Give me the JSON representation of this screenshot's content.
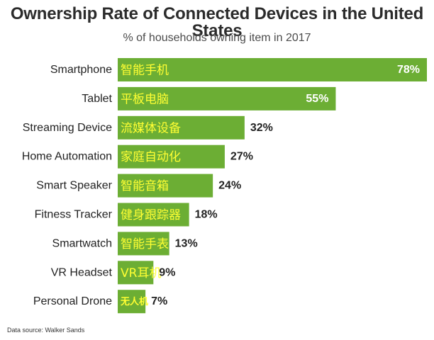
{
  "title": "Ownership Rate of Connected Devices in the United States",
  "subtitle": "% of households owning item in 2017",
  "source": "Data source: Walker Sands",
  "colors": {
    "bar": "#6cae34",
    "inside_label": "#ffff33",
    "inside_value": "#ffffff",
    "text": "#222222"
  },
  "chart_data": {
    "type": "bar",
    "orientation": "horizontal",
    "title": "Ownership Rate of Connected Devices in the United States",
    "subtitle": "% of households owning item in 2017",
    "categories": [
      "Smartphone",
      "Tablet",
      "Streaming Device",
      "Home Automation",
      "Smart Speaker",
      "Fitness Tracker",
      "Smartwatch",
      "VR Headset",
      "Personal Drone"
    ],
    "bar_text": [
      "智能手机",
      "平板电脑",
      "流媒体设备",
      "家庭自动化",
      "智能音箱",
      "健身跟踪器",
      "智能手表",
      "VR耳机",
      "无人机"
    ],
    "values": [
      78,
      55,
      32,
      27,
      24,
      18,
      13,
      9,
      7
    ],
    "value_labels": [
      "78%",
      "55%",
      "32%",
      "27%",
      "24%",
      "18%",
      "13%",
      "9%",
      "7%"
    ],
    "xlim": [
      0,
      78
    ],
    "grid": false,
    "legend": "none"
  }
}
